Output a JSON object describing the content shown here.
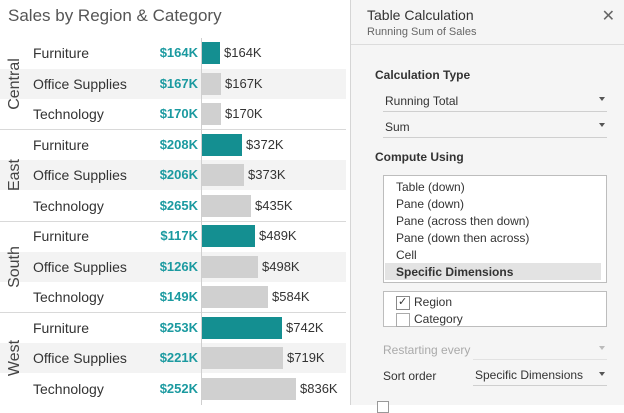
{
  "viz": {
    "title": "Sales by Region & Category",
    "colors": {
      "accent_teal": "#148f91",
      "sales_text": "#1b9aa0",
      "bar_grey": "#d0d0d0"
    },
    "regions": [
      {
        "name": "Central",
        "rows": [
          {
            "category": "Furniture",
            "sales": "$164K",
            "running_total": "$164K",
            "running_value": 164,
            "highlight": true
          },
          {
            "category": "Office Supplies",
            "sales": "$167K",
            "running_total": "$167K",
            "running_value": 167,
            "highlight": false
          },
          {
            "category": "Technology",
            "sales": "$170K",
            "running_total": "$170K",
            "running_value": 170,
            "highlight": false
          }
        ]
      },
      {
        "name": "East",
        "rows": [
          {
            "category": "Furniture",
            "sales": "$208K",
            "running_total": "$372K",
            "running_value": 372,
            "highlight": true
          },
          {
            "category": "Office Supplies",
            "sales": "$206K",
            "running_total": "$373K",
            "running_value": 373,
            "highlight": false
          },
          {
            "category": "Technology",
            "sales": "$265K",
            "running_total": "$435K",
            "running_value": 435,
            "highlight": false
          }
        ]
      },
      {
        "name": "South",
        "rows": [
          {
            "category": "Furniture",
            "sales": "$117K",
            "running_total": "$489K",
            "running_value": 489,
            "highlight": true
          },
          {
            "category": "Office Supplies",
            "sales": "$126K",
            "running_total": "$498K",
            "running_value": 498,
            "highlight": false
          },
          {
            "category": "Technology",
            "sales": "$149K",
            "running_total": "$584K",
            "running_value": 584,
            "highlight": false
          }
        ]
      },
      {
        "name": "West",
        "rows": [
          {
            "category": "Furniture",
            "sales": "$253K",
            "running_total": "$742K",
            "running_value": 742,
            "highlight": true
          },
          {
            "category": "Office Supplies",
            "sales": "$221K",
            "running_total": "$719K",
            "running_value": 719,
            "highlight": false
          },
          {
            "category": "Technology",
            "sales": "$252K",
            "running_total": "$836K",
            "running_value": 836,
            "highlight": false
          }
        ]
      }
    ]
  },
  "panel": {
    "title": "Table Calculation",
    "subtitle": "Running Sum of Sales",
    "close_icon": "close-icon",
    "calculation_type": {
      "heading": "Calculation Type",
      "type_value": "Running Total",
      "aggregation_value": "Sum"
    },
    "compute_using": {
      "heading": "Compute Using",
      "options": [
        "Table (down)",
        "Pane (down)",
        "Pane (across then down)",
        "Pane (down then across)",
        "Cell",
        "Specific Dimensions"
      ],
      "selected": "Specific Dimensions"
    },
    "dimensions": [
      {
        "label": "Region",
        "checked": true,
        "mark": "✓"
      },
      {
        "label": "Category",
        "checked": false,
        "mark": ""
      }
    ],
    "restarting_every": {
      "label": "Restarting every",
      "value": ""
    },
    "sort_order": {
      "label": "Sort order",
      "value": "Specific Dimensions"
    }
  }
}
